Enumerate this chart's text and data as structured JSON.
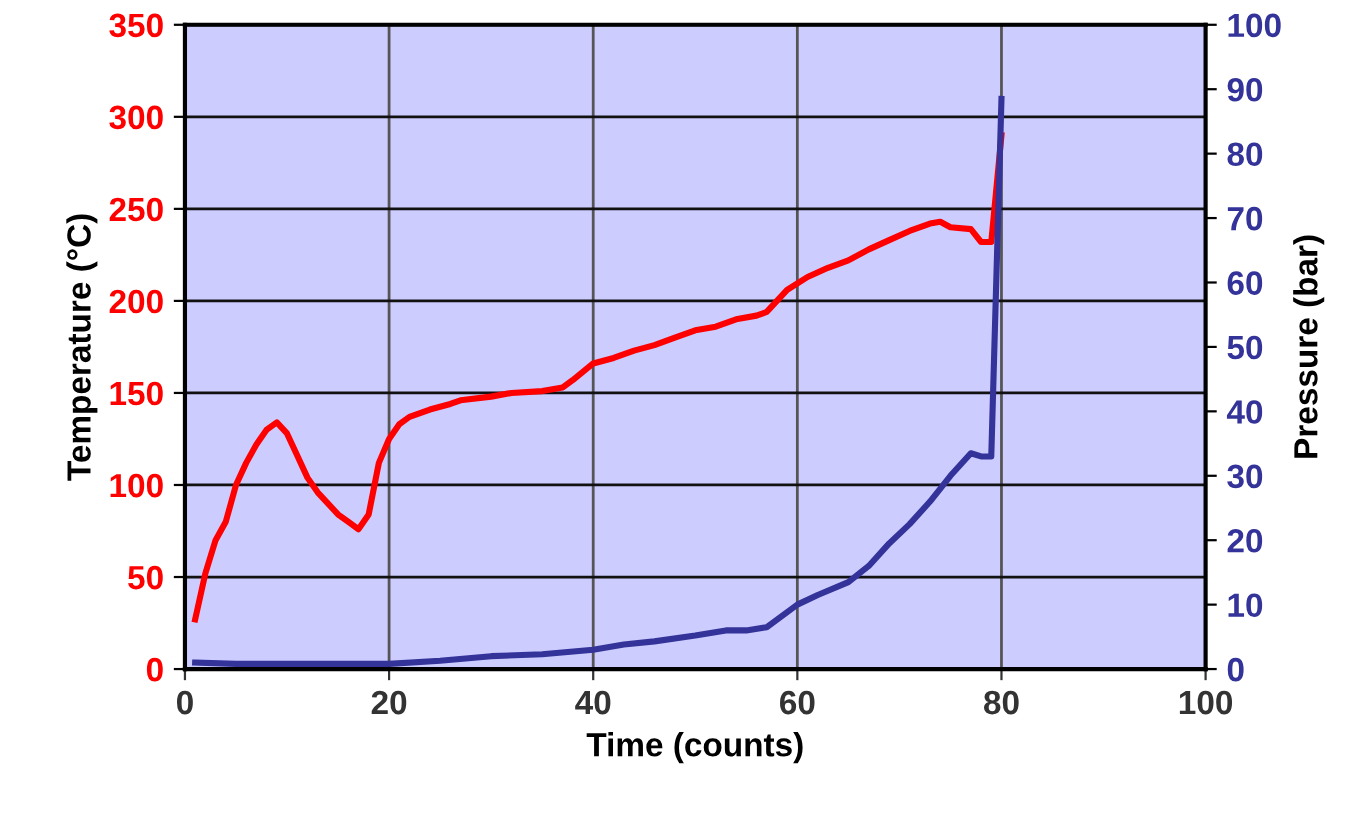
{
  "chart_data": {
    "type": "line",
    "xlabel": "Time (counts)",
    "ylabel": "Temperature (°C)",
    "y2label": "Pressure (bar)",
    "xlim": [
      0,
      100
    ],
    "xticks": [
      0,
      20,
      40,
      60,
      80,
      100
    ],
    "ylim": [
      0,
      350
    ],
    "yticks": [
      0,
      50,
      100,
      150,
      200,
      250,
      300,
      350
    ],
    "y2lim": [
      0,
      100
    ],
    "y2ticks": [
      0,
      10,
      20,
      30,
      40,
      50,
      60,
      70,
      80,
      90,
      100
    ],
    "grid": true,
    "series": [
      {
        "color": "#ff0000",
        "x": [
          1,
          2,
          3,
          4,
          5,
          6,
          7,
          8,
          9,
          10,
          11,
          12,
          13,
          14,
          15,
          16,
          17,
          18,
          19,
          20,
          21,
          22,
          24,
          26,
          27,
          30,
          32,
          35,
          37,
          38,
          40,
          42,
          44,
          46,
          48,
          50,
          52,
          54,
          56,
          57,
          59,
          61,
          63,
          65,
          67,
          69,
          71,
          73,
          74,
          75,
          77,
          78,
          79,
          80
        ],
        "values": [
          27,
          52,
          70,
          80,
          100,
          112,
          122,
          130,
          134,
          128,
          116,
          104,
          96,
          90,
          84,
          80,
          76,
          84,
          112,
          125,
          133,
          137,
          141,
          144,
          146,
          148,
          150,
          151,
          153,
          157,
          166,
          169,
          173,
          176,
          180,
          184,
          186,
          190,
          192,
          194,
          206,
          213,
          218,
          222,
          228,
          233,
          238,
          242,
          243,
          240,
          239,
          232,
          232,
          290
        ]
      },
      {
        "color": "#333399",
        "axis": "y2",
        "x": [
          1,
          5,
          10,
          15,
          20,
          25,
          30,
          35,
          40,
          43,
          46,
          50,
          53,
          55,
          57,
          60,
          62,
          65,
          67,
          69,
          71,
          73,
          75,
          77,
          78,
          79,
          80
        ],
        "values": [
          1,
          0.8,
          0.8,
          0.8,
          0.8,
          1.3,
          2,
          2.3,
          3,
          3.8,
          4.3,
          5.2,
          6,
          6,
          6.5,
          10,
          11.5,
          13.5,
          16,
          19.5,
          22.5,
          26,
          30,
          33.5,
          33,
          33,
          88.5
        ]
      }
    ]
  }
}
